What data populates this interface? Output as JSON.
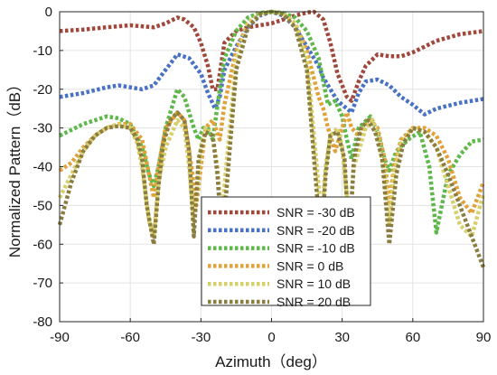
{
  "chart_data": {
    "type": "line",
    "title": "",
    "xlabel": "Azimuth（deg）",
    "ylabel": "Normalized Pattern（dB）",
    "xlim": [
      -90,
      90
    ],
    "ylim": [
      -80,
      0
    ],
    "xticks": [
      -90,
      -60,
      -30,
      0,
      30,
      60,
      90
    ],
    "yticks": [
      0,
      -10,
      -20,
      -30,
      -40,
      -50,
      -60,
      -70,
      -80
    ],
    "grid": true,
    "legend_position": "bottom-center",
    "series": [
      {
        "name": "SNR = -30 dB",
        "color": "#a0483c",
        "x": [
          -90,
          -80,
          -70,
          -60,
          -50,
          -45,
          -40,
          -37,
          -33,
          -30,
          -27,
          -25,
          -23,
          -22,
          -20,
          -15,
          -10,
          -5,
          0,
          5,
          10,
          15,
          18,
          22,
          25,
          28,
          32,
          34,
          37,
          40,
          45,
          50,
          55,
          60,
          65,
          70,
          80,
          90
        ],
        "y": [
          -5,
          -4.6,
          -4,
          -3.5,
          -4,
          -3,
          -1.5,
          -2,
          -4,
          -8,
          -14,
          -20,
          -20,
          -16,
          -8,
          -5,
          -4,
          -3.5,
          -3,
          -2,
          -1,
          -0.2,
          0,
          -2,
          -8,
          -16,
          -22,
          -23,
          -18,
          -14,
          -11,
          -11.5,
          -11.5,
          -10.5,
          -9,
          -7.5,
          -5.8,
          -5
        ]
      },
      {
        "name": "SNR = -20 dB",
        "color": "#4a72c4",
        "x": [
          -90,
          -80,
          -70,
          -65,
          -60,
          -55,
          -50,
          -45,
          -40,
          -35,
          -30,
          -27,
          -24,
          -22,
          -20,
          -15,
          -10,
          -5,
          0,
          5,
          10,
          15,
          20,
          22,
          25,
          28,
          32,
          34,
          37,
          40,
          45,
          50,
          55,
          60,
          65,
          70,
          80,
          90
        ],
        "y": [
          -22,
          -21,
          -19.5,
          -19,
          -19.5,
          -20,
          -19,
          -15,
          -11,
          -12,
          -16,
          -21,
          -25,
          -22,
          -15,
          -9,
          -4,
          -1,
          0,
          -1,
          -4,
          -9,
          -14,
          -17,
          -20,
          -23,
          -25,
          -26,
          -21,
          -18,
          -17.5,
          -19,
          -22,
          -24,
          -26.5,
          -25,
          -23.5,
          -22.5
        ]
      },
      {
        "name": "SNR = -10 dB",
        "color": "#5fb84a",
        "x": [
          -90,
          -80,
          -70,
          -65,
          -60,
          -55,
          -52,
          -50,
          -48,
          -45,
          -40,
          -37,
          -35,
          -33,
          -31,
          -29,
          -27,
          -25,
          -22,
          -20,
          -15,
          -10,
          -5,
          0,
          5,
          10,
          15,
          20,
          22,
          24,
          27,
          30,
          32,
          34,
          37,
          42,
          45,
          48,
          50,
          53,
          58,
          63,
          67,
          70,
          75,
          80,
          85,
          90
        ],
        "y": [
          -32,
          -29,
          -27,
          -27.5,
          -29,
          -35,
          -42,
          -45,
          -40,
          -30,
          -20,
          -22,
          -26,
          -30,
          -33,
          -30,
          -30,
          -33,
          -20,
          -12,
          -5,
          -1.5,
          -0.3,
          0,
          -0.3,
          -1.5,
          -5,
          -12,
          -18,
          -24,
          -23,
          -27,
          -33,
          -38,
          -30,
          -27,
          -31,
          -38,
          -41,
          -36,
          -33,
          -31,
          -40,
          -57,
          -42,
          -37,
          -33.5,
          -33
        ]
      },
      {
        "name": "SNR = 0 dB",
        "color": "#e0a23a",
        "x": [
          -90,
          -85,
          -80,
          -75,
          -70,
          -65,
          -60,
          -55,
          -52,
          -50,
          -48,
          -45,
          -40,
          -37,
          -34,
          -32,
          -30,
          -28,
          -25,
          -22,
          -20,
          -15,
          -10,
          -5,
          0,
          5,
          10,
          15,
          20,
          22,
          24,
          27,
          30,
          32,
          34,
          37,
          42,
          45,
          48,
          50,
          52,
          55,
          60,
          65,
          70,
          75,
          80,
          85,
          90
        ],
        "y": [
          -41,
          -39,
          -35,
          -32,
          -30,
          -29,
          -29,
          -33,
          -42,
          -48,
          -40,
          -30,
          -26,
          -28,
          -40,
          -50,
          -40,
          -30,
          -28,
          -33,
          -24,
          -10,
          -3,
          -0.5,
          0,
          -0.5,
          -3,
          -10,
          -22,
          -25,
          -30,
          -36,
          -30,
          -26,
          -30,
          -32,
          -28,
          -30,
          -38,
          -50,
          -40,
          -33,
          -30,
          -30,
          -32,
          -38,
          -48,
          -52,
          -44
        ]
      },
      {
        "name": "SNR = 10 dB",
        "color": "#d6cf6a",
        "x": [
          -90,
          -85,
          -80,
          -75,
          -70,
          -65,
          -60,
          -57,
          -55,
          -52,
          -50,
          -48,
          -45,
          -40,
          -37,
          -35,
          -33,
          -30,
          -28,
          -25,
          -23,
          -21,
          -20,
          -15,
          -10,
          -5,
          0,
          5,
          10,
          15,
          20,
          21,
          23,
          25,
          28,
          30,
          33,
          35,
          40,
          43,
          45,
          48,
          50,
          52,
          55,
          60,
          65,
          70,
          75,
          80,
          85,
          90
        ],
        "y": [
          -48,
          -42,
          -36,
          -32,
          -30,
          -29,
          -30,
          -34,
          -40,
          -54,
          -58,
          -44,
          -35,
          -28,
          -30,
          -40,
          -54,
          -35,
          -30,
          -32,
          -40,
          -55,
          -45,
          -12,
          -3,
          -0.5,
          0,
          -0.5,
          -3,
          -12,
          -45,
          -55,
          -40,
          -32,
          -30,
          -35,
          -54,
          -40,
          -30,
          -28,
          -32,
          -42,
          -55,
          -42,
          -34,
          -30,
          -31,
          -35,
          -45,
          -55,
          -58,
          -47
        ]
      },
      {
        "name": "SNR = 20 dB",
        "color": "#8b7d3f",
        "x": [
          -90,
          -85,
          -80,
          -75,
          -70,
          -65,
          -60,
          -57,
          -55,
          -53,
          -50,
          -48,
          -46,
          -43,
          -40,
          -37,
          -35,
          -33,
          -31,
          -28,
          -25,
          -23,
          -21,
          -19,
          -15,
          -10,
          -5,
          0,
          5,
          10,
          15,
          19,
          21,
          23,
          25,
          28,
          31,
          33,
          35,
          38,
          41,
          44,
          47,
          50,
          53,
          56,
          60,
          65,
          70,
          75,
          80,
          85,
          90
        ],
        "y": [
          -55,
          -44,
          -36,
          -32,
          -30,
          -29.5,
          -30,
          -33,
          -38,
          -50,
          -60,
          -45,
          -34,
          -28,
          -26,
          -28,
          -36,
          -58,
          -38,
          -31,
          -32,
          -42,
          -60,
          -45,
          -15,
          -4,
          -0.7,
          0,
          -0.7,
          -4,
          -15,
          -45,
          -60,
          -42,
          -32,
          -31,
          -38,
          -60,
          -38,
          -30,
          -28,
          -31,
          -38,
          -60,
          -42,
          -34,
          -30,
          -31,
          -35,
          -42,
          -50,
          -58,
          -66
        ]
      }
    ]
  }
}
